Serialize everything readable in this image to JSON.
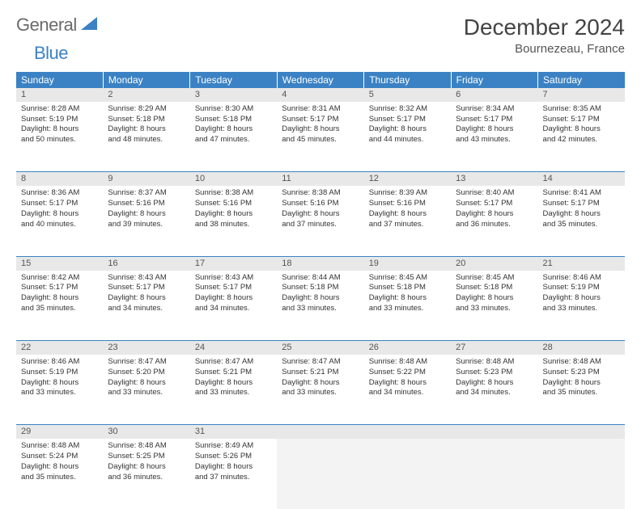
{
  "logo": {
    "part1": "General",
    "part2": "Blue"
  },
  "title": "December 2024",
  "location": "Bournezeau, France",
  "colors": {
    "header_bg": "#3b82c4",
    "header_text": "#ffffff",
    "daynum_bg": "#e8e8e8",
    "border": "#3b82c4",
    "logo_gray": "#6b6b6b",
    "logo_blue": "#3b82c4"
  },
  "weekday_headers": [
    "Sunday",
    "Monday",
    "Tuesday",
    "Wednesday",
    "Thursday",
    "Friday",
    "Saturday"
  ],
  "weeks": [
    [
      {
        "num": "1",
        "sunrise": "Sunrise: 8:28 AM",
        "sunset": "Sunset: 5:19 PM",
        "day1": "Daylight: 8 hours",
        "day2": "and 50 minutes."
      },
      {
        "num": "2",
        "sunrise": "Sunrise: 8:29 AM",
        "sunset": "Sunset: 5:18 PM",
        "day1": "Daylight: 8 hours",
        "day2": "and 48 minutes."
      },
      {
        "num": "3",
        "sunrise": "Sunrise: 8:30 AM",
        "sunset": "Sunset: 5:18 PM",
        "day1": "Daylight: 8 hours",
        "day2": "and 47 minutes."
      },
      {
        "num": "4",
        "sunrise": "Sunrise: 8:31 AM",
        "sunset": "Sunset: 5:17 PM",
        "day1": "Daylight: 8 hours",
        "day2": "and 45 minutes."
      },
      {
        "num": "5",
        "sunrise": "Sunrise: 8:32 AM",
        "sunset": "Sunset: 5:17 PM",
        "day1": "Daylight: 8 hours",
        "day2": "and 44 minutes."
      },
      {
        "num": "6",
        "sunrise": "Sunrise: 8:34 AM",
        "sunset": "Sunset: 5:17 PM",
        "day1": "Daylight: 8 hours",
        "day2": "and 43 minutes."
      },
      {
        "num": "7",
        "sunrise": "Sunrise: 8:35 AM",
        "sunset": "Sunset: 5:17 PM",
        "day1": "Daylight: 8 hours",
        "day2": "and 42 minutes."
      }
    ],
    [
      {
        "num": "8",
        "sunrise": "Sunrise: 8:36 AM",
        "sunset": "Sunset: 5:17 PM",
        "day1": "Daylight: 8 hours",
        "day2": "and 40 minutes."
      },
      {
        "num": "9",
        "sunrise": "Sunrise: 8:37 AM",
        "sunset": "Sunset: 5:16 PM",
        "day1": "Daylight: 8 hours",
        "day2": "and 39 minutes."
      },
      {
        "num": "10",
        "sunrise": "Sunrise: 8:38 AM",
        "sunset": "Sunset: 5:16 PM",
        "day1": "Daylight: 8 hours",
        "day2": "and 38 minutes."
      },
      {
        "num": "11",
        "sunrise": "Sunrise: 8:38 AM",
        "sunset": "Sunset: 5:16 PM",
        "day1": "Daylight: 8 hours",
        "day2": "and 37 minutes."
      },
      {
        "num": "12",
        "sunrise": "Sunrise: 8:39 AM",
        "sunset": "Sunset: 5:16 PM",
        "day1": "Daylight: 8 hours",
        "day2": "and 37 minutes."
      },
      {
        "num": "13",
        "sunrise": "Sunrise: 8:40 AM",
        "sunset": "Sunset: 5:17 PM",
        "day1": "Daylight: 8 hours",
        "day2": "and 36 minutes."
      },
      {
        "num": "14",
        "sunrise": "Sunrise: 8:41 AM",
        "sunset": "Sunset: 5:17 PM",
        "day1": "Daylight: 8 hours",
        "day2": "and 35 minutes."
      }
    ],
    [
      {
        "num": "15",
        "sunrise": "Sunrise: 8:42 AM",
        "sunset": "Sunset: 5:17 PM",
        "day1": "Daylight: 8 hours",
        "day2": "and 35 minutes."
      },
      {
        "num": "16",
        "sunrise": "Sunrise: 8:43 AM",
        "sunset": "Sunset: 5:17 PM",
        "day1": "Daylight: 8 hours",
        "day2": "and 34 minutes."
      },
      {
        "num": "17",
        "sunrise": "Sunrise: 8:43 AM",
        "sunset": "Sunset: 5:17 PM",
        "day1": "Daylight: 8 hours",
        "day2": "and 34 minutes."
      },
      {
        "num": "18",
        "sunrise": "Sunrise: 8:44 AM",
        "sunset": "Sunset: 5:18 PM",
        "day1": "Daylight: 8 hours",
        "day2": "and 33 minutes."
      },
      {
        "num": "19",
        "sunrise": "Sunrise: 8:45 AM",
        "sunset": "Sunset: 5:18 PM",
        "day1": "Daylight: 8 hours",
        "day2": "and 33 minutes."
      },
      {
        "num": "20",
        "sunrise": "Sunrise: 8:45 AM",
        "sunset": "Sunset: 5:18 PM",
        "day1": "Daylight: 8 hours",
        "day2": "and 33 minutes."
      },
      {
        "num": "21",
        "sunrise": "Sunrise: 8:46 AM",
        "sunset": "Sunset: 5:19 PM",
        "day1": "Daylight: 8 hours",
        "day2": "and 33 minutes."
      }
    ],
    [
      {
        "num": "22",
        "sunrise": "Sunrise: 8:46 AM",
        "sunset": "Sunset: 5:19 PM",
        "day1": "Daylight: 8 hours",
        "day2": "and 33 minutes."
      },
      {
        "num": "23",
        "sunrise": "Sunrise: 8:47 AM",
        "sunset": "Sunset: 5:20 PM",
        "day1": "Daylight: 8 hours",
        "day2": "and 33 minutes."
      },
      {
        "num": "24",
        "sunrise": "Sunrise: 8:47 AM",
        "sunset": "Sunset: 5:21 PM",
        "day1": "Daylight: 8 hours",
        "day2": "and 33 minutes."
      },
      {
        "num": "25",
        "sunrise": "Sunrise: 8:47 AM",
        "sunset": "Sunset: 5:21 PM",
        "day1": "Daylight: 8 hours",
        "day2": "and 33 minutes."
      },
      {
        "num": "26",
        "sunrise": "Sunrise: 8:48 AM",
        "sunset": "Sunset: 5:22 PM",
        "day1": "Daylight: 8 hours",
        "day2": "and 34 minutes."
      },
      {
        "num": "27",
        "sunrise": "Sunrise: 8:48 AM",
        "sunset": "Sunset: 5:23 PM",
        "day1": "Daylight: 8 hours",
        "day2": "and 34 minutes."
      },
      {
        "num": "28",
        "sunrise": "Sunrise: 8:48 AM",
        "sunset": "Sunset: 5:23 PM",
        "day1": "Daylight: 8 hours",
        "day2": "and 35 minutes."
      }
    ],
    [
      {
        "num": "29",
        "sunrise": "Sunrise: 8:48 AM",
        "sunset": "Sunset: 5:24 PM",
        "day1": "Daylight: 8 hours",
        "day2": "and 35 minutes."
      },
      {
        "num": "30",
        "sunrise": "Sunrise: 8:48 AM",
        "sunset": "Sunset: 5:25 PM",
        "day1": "Daylight: 8 hours",
        "day2": "and 36 minutes."
      },
      {
        "num": "31",
        "sunrise": "Sunrise: 8:49 AM",
        "sunset": "Sunset: 5:26 PM",
        "day1": "Daylight: 8 hours",
        "day2": "and 37 minutes."
      },
      null,
      null,
      null,
      null
    ]
  ]
}
